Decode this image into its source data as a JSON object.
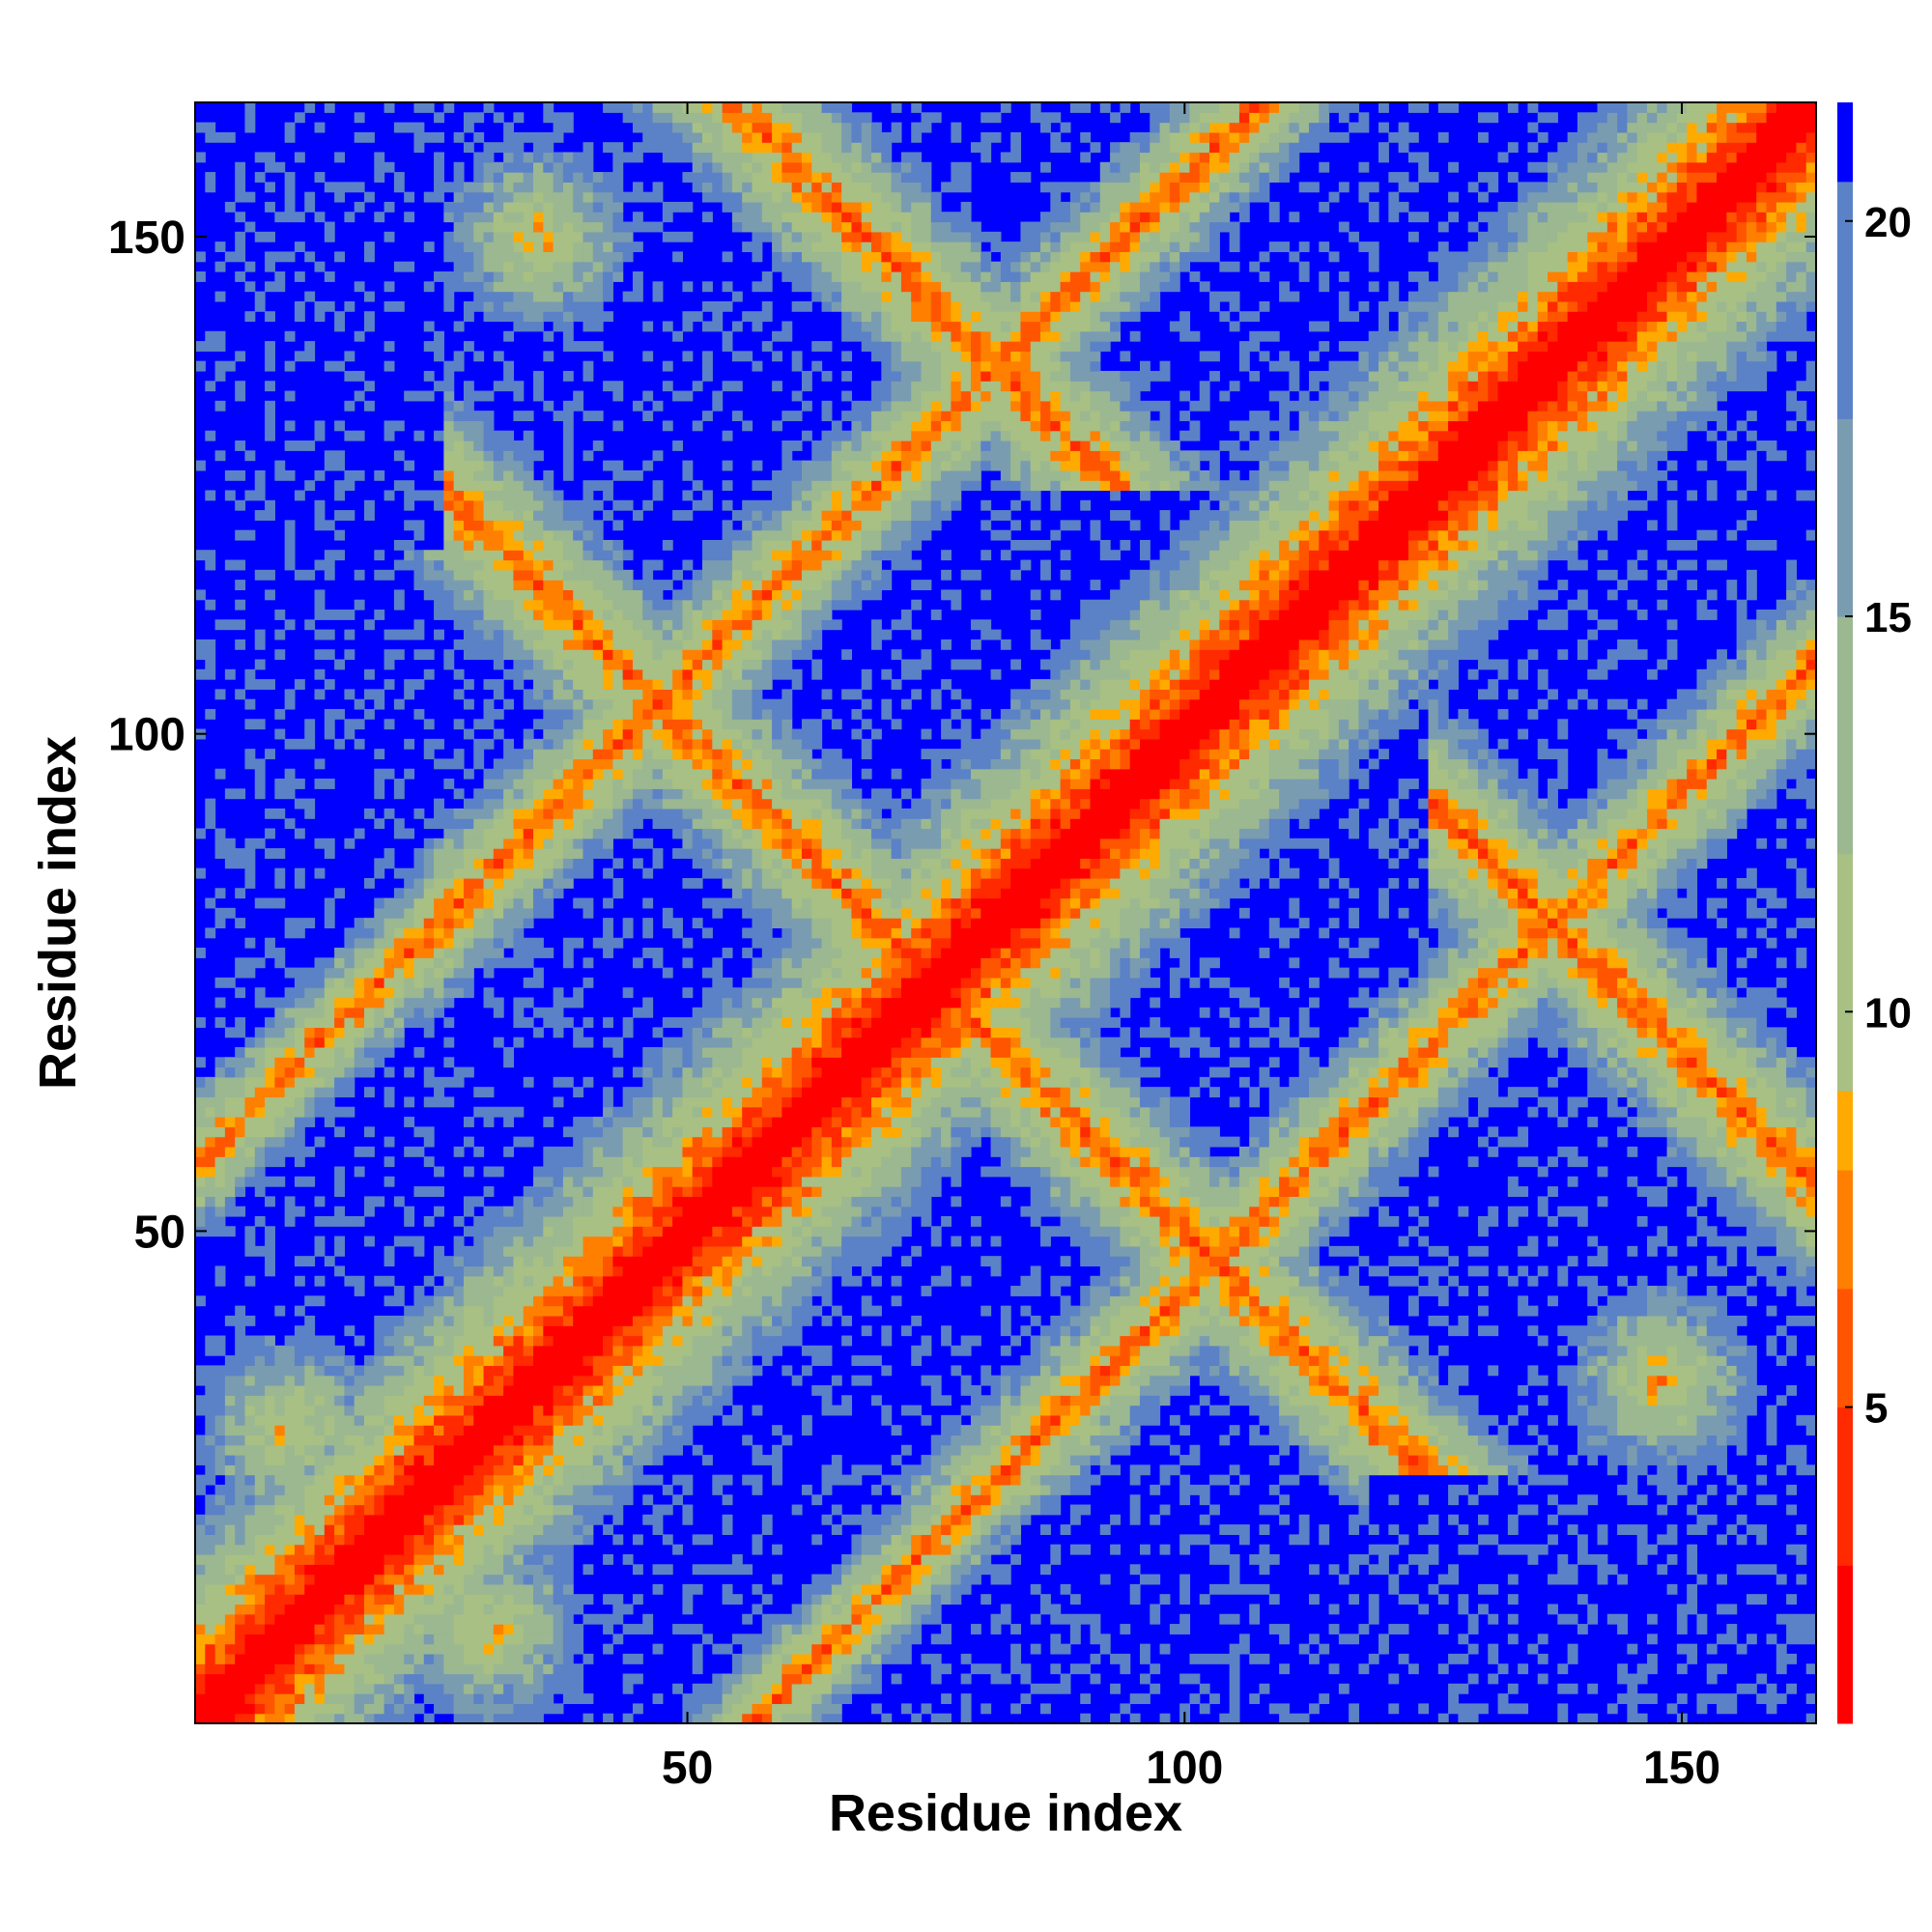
{
  "chart_data": {
    "type": "heatmap",
    "title": "",
    "xlabel": "Residue index",
    "ylabel": "Residue index",
    "n_residues": 163,
    "xlim": [
      0.5,
      163.5
    ],
    "ylim": [
      0.5,
      163.5
    ],
    "x_ticks": [
      50,
      100,
      150
    ],
    "y_ticks": [
      50,
      100,
      150
    ],
    "x_tick_labels": [
      "50",
      "100",
      "150"
    ],
    "y_tick_labels": [
      "50",
      "100",
      "150"
    ],
    "colorbar": {
      "range": [
        1,
        21.5
      ],
      "ticks": [
        5,
        10,
        15,
        20
      ],
      "tick_labels": [
        "5",
        "10",
        "15",
        "20"
      ],
      "stops": [
        {
          "value": 1,
          "color": "#ff0000"
        },
        {
          "value": 3,
          "color": "#ff2a00"
        },
        {
          "value": 5,
          "color": "#ff5500"
        },
        {
          "value": 6.5,
          "color": "#ff8000"
        },
        {
          "value": 8,
          "color": "#ffaa00"
        },
        {
          "value": 9,
          "color": "#a8c084"
        },
        {
          "value": 12,
          "color": "#9bb890"
        },
        {
          "value": 15,
          "color": "#7a9cb0"
        },
        {
          "value": 17.5,
          "color": "#5b82c6"
        },
        {
          "value": 20,
          "color": "#5b82c6"
        },
        {
          "value": 20.5,
          "color": "#0000ff"
        }
      ]
    },
    "colors": {
      "far": "#0000ff",
      "mid_band": "#5b82c6",
      "band_light": "#98b894",
      "close": "#ffaa00",
      "contact": "#ff8000",
      "diagonal": "#ff0000"
    },
    "contact_bands": [
      {
        "note": "main diagonal",
        "orientation": "diag",
        "i_range": [
          1,
          163
        ],
        "width": 7
      },
      {
        "orientation": "anti",
        "i_range": [
          26,
          77
        ],
        "center_sum": 150,
        "width": 9,
        "strength": 0.8
      },
      {
        "orientation": "anti",
        "i_range": [
          40,
          78
        ],
        "center_sum": 150,
        "width": 5,
        "strength": 0.9
      },
      {
        "orientation": "anti",
        "i_range": [
          125,
          163
        ],
        "center_sum": 218,
        "width": 9,
        "strength": 0.8
      },
      {
        "orientation": "anti",
        "i_range": [
          78,
          118
        ],
        "center_sum": 150,
        "width": 8,
        "strength": 0.85
      },
      {
        "orientation": "par",
        "i_range": [
          80,
          125
        ],
        "offset": 56,
        "width": 7,
        "strength": 0.85
      },
      {
        "orientation": "par",
        "i_range": [
          35,
          78
        ],
        "offset": 56,
        "width": 6,
        "strength": 0.8
      },
      {
        "orientation": "blob",
        "center": [
          35,
          150
        ],
        "radius": 14,
        "strength": 0.7
      },
      {
        "orientation": "blob",
        "center": [
          148,
          35
        ],
        "radius": 14,
        "strength": 0.7
      },
      {
        "orientation": "blob",
        "center": [
          10,
          30
        ],
        "radius": 14,
        "strength": 0.7
      },
      {
        "orientation": "blob",
        "center": [
          30,
          10
        ],
        "radius": 14,
        "strength": 0.7
      },
      {
        "orientation": "blob",
        "center": [
          125,
          118
        ],
        "radius": 6,
        "strength": 1.0
      },
      {
        "orientation": "blob",
        "center": [
          118,
          125
        ],
        "radius": 6,
        "strength": 1.0
      },
      {
        "orientation": "blob",
        "center": [
          74,
          76
        ],
        "radius": 5,
        "strength": 1.0
      }
    ]
  }
}
